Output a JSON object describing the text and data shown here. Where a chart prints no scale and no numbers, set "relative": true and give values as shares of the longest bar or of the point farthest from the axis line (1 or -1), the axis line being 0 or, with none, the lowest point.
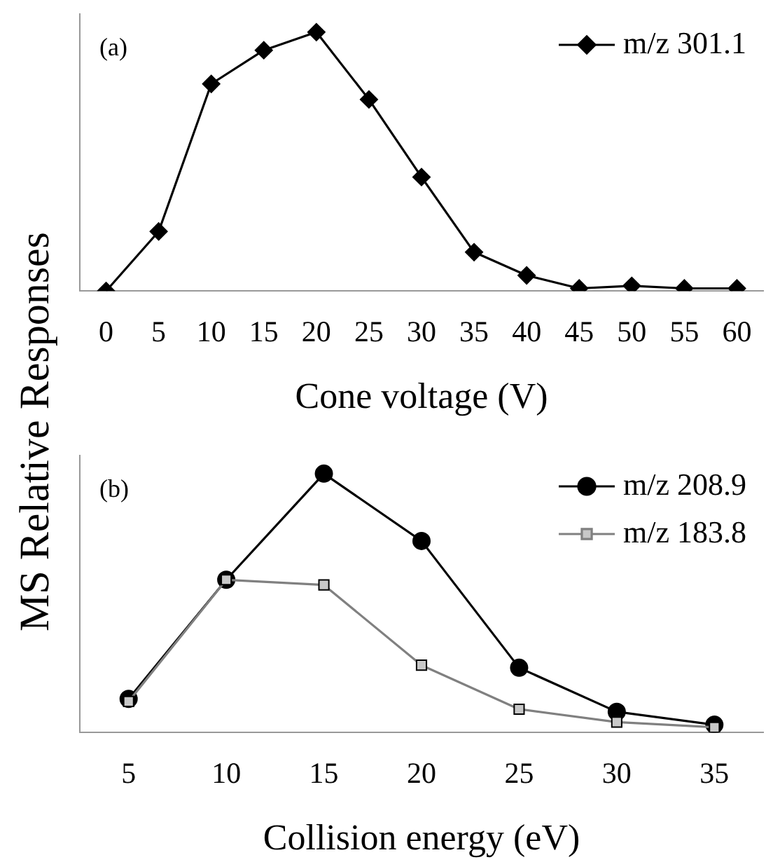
{
  "chart_data": [
    {
      "type": "line",
      "relative": true,
      "xlabel": "Cone voltage (V)",
      "ylabel": "MS Relative Responses",
      "annotations": [
        "(a)"
      ],
      "legend": "top right",
      "categories": [
        "0",
        "5",
        "10",
        "15",
        "20",
        "25",
        "30",
        "35",
        "40",
        "45",
        "50",
        "55",
        "60"
      ],
      "series": [
        {
          "name": "m/z 301.1",
          "color": "#000000",
          "marker": "diamond",
          "values": [
            0,
            0.23,
            0.8,
            0.93,
            1,
            0.74,
            0.44,
            0.15,
            0.06,
            0.01,
            0.02,
            0.01,
            0.01
          ]
        }
      ]
    },
    {
      "type": "line",
      "relative": true,
      "xlabel": "Collision energy (eV)",
      "annotations": [
        "(b)"
      ],
      "legend": "top right",
      "categories": [
        "5",
        "10",
        "15",
        "20",
        "25",
        "30",
        "35"
      ],
      "series": [
        {
          "name": "m/z 208.9",
          "color": "#000000",
          "marker": "circle",
          "values": [
            0.13,
            0.59,
            1,
            0.74,
            0.25,
            0.08,
            0.03
          ]
        },
        {
          "name": "m/z 183.8",
          "color": "#808080",
          "marker": "square",
          "values": [
            0.12,
            0.59,
            0.57,
            0.26,
            0.09,
            0.04,
            0.02
          ]
        }
      ]
    }
  ]
}
